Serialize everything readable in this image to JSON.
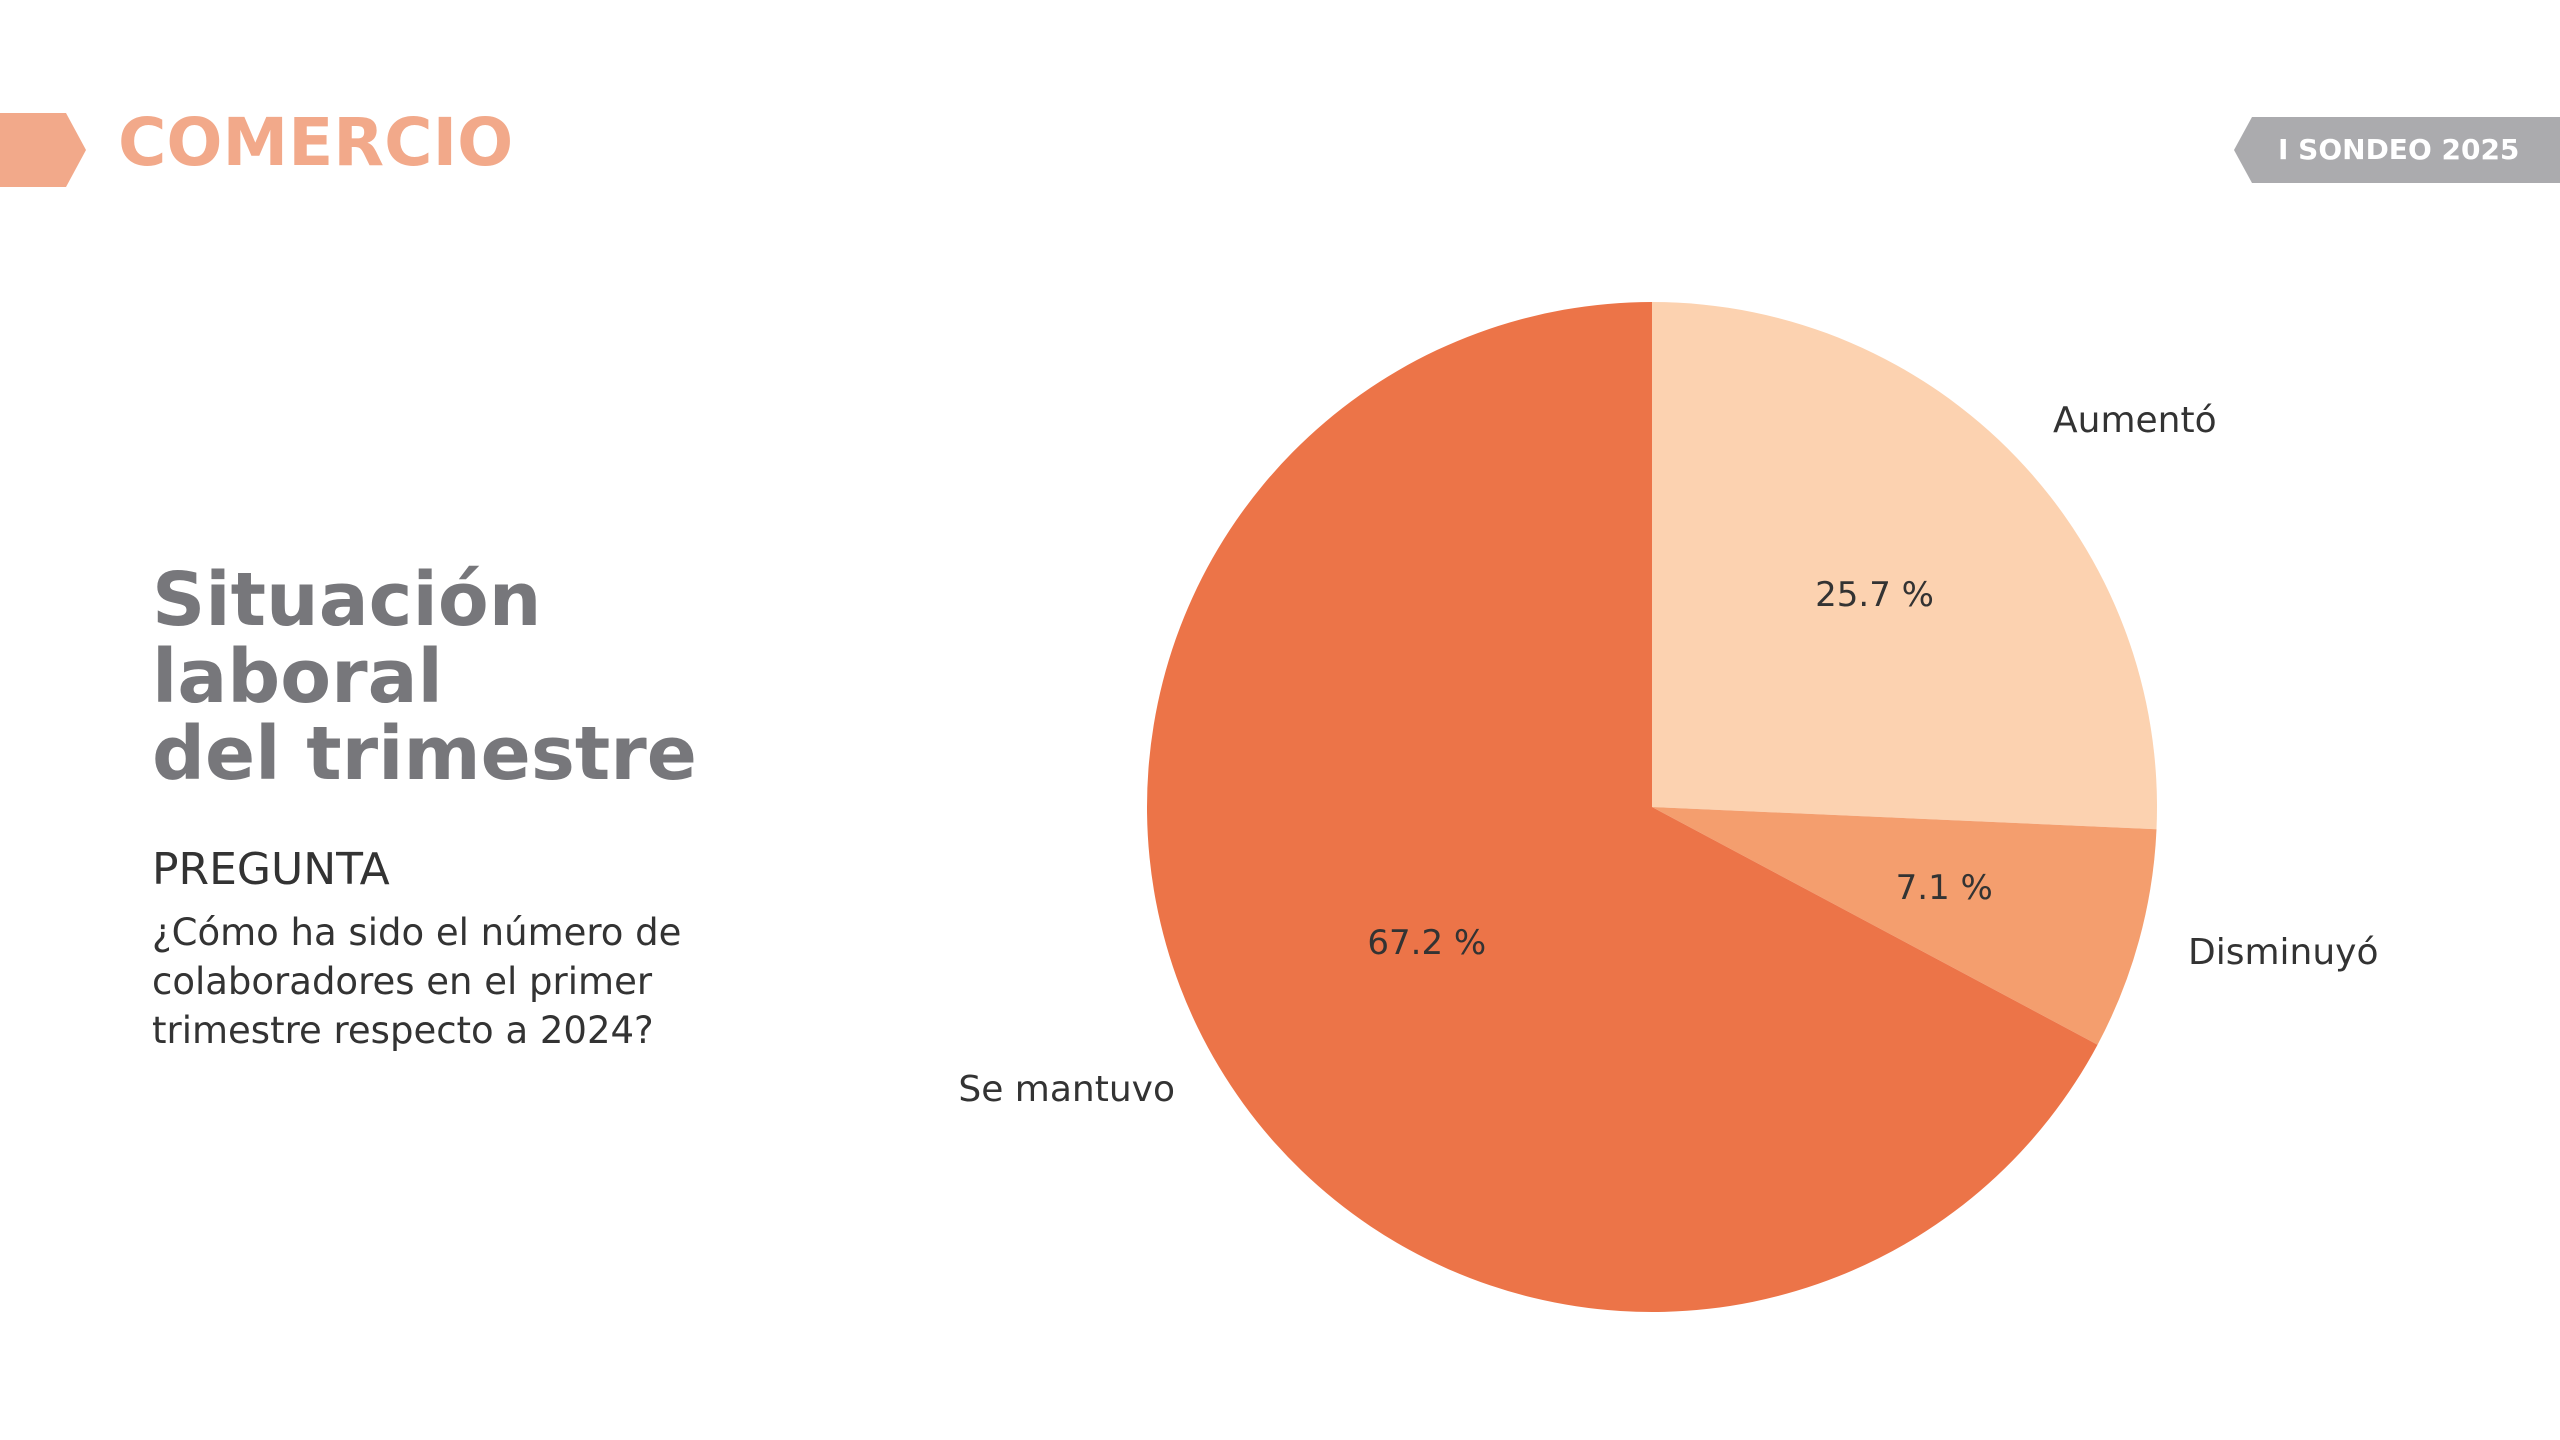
{
  "header": {
    "section_title": "COMERCIO",
    "badge_label": "I SONDEO 2025"
  },
  "heading": {
    "lines": [
      "Situación",
      "laboral",
      "del trimestre"
    ]
  },
  "question": {
    "label": "PREGUNTA",
    "lines": [
      "¿Cómo ha sido el número de",
      "colaboradores en el primer",
      "trimestre respecto a 2024?"
    ]
  },
  "colors": {
    "accent": "#F2A98A",
    "heading": "#77777B",
    "badge": "#ABABAE"
  },
  "chart_data": {
    "type": "pie",
    "categories": [
      "Aumentó",
      "Disminuyó",
      "Se mantuvo"
    ],
    "values": [
      25.7,
      7.1,
      67.2
    ],
    "value_labels": [
      "25.7 %",
      "7.1 %",
      "67.2 %"
    ],
    "colors": [
      "#FCD2B0",
      "#F49E6E",
      "#EC7448"
    ],
    "start_angle": "12 o'clock, clockwise"
  }
}
